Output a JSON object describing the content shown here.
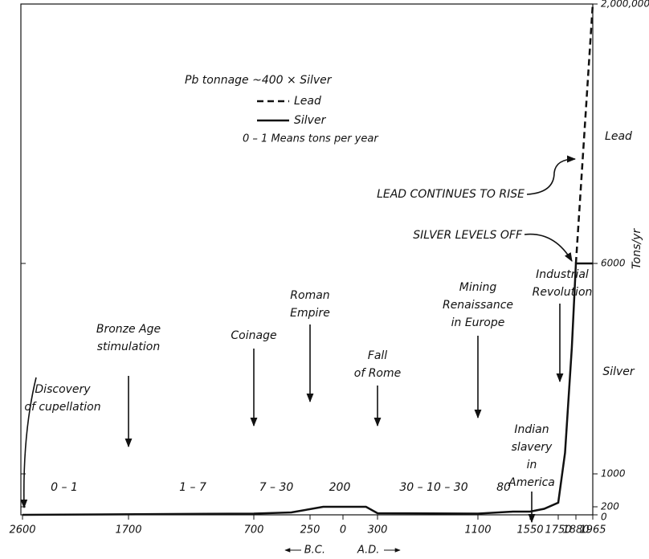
{
  "chart_data": {
    "type": "line",
    "xlim": [
      -2600,
      1965
    ],
    "xticks": [
      {
        "value": -2600,
        "label": "2600"
      },
      {
        "value": -1700,
        "label": "1700"
      },
      {
        "value": -700,
        "label": "700"
      },
      {
        "value": -250,
        "label": "250"
      },
      0,
      300,
      1100,
      1550,
      1750,
      1880,
      1965
    ],
    "ylim": [
      0,
      2000000
    ],
    "yticks": [
      0,
      200,
      1000,
      6000,
      {
        "value": 2000000,
        "label": "2,000,000"
      }
    ],
    "y_label": "Tons/yr",
    "era_labels": {
      "bc": "B.C.",
      "ad": "A.D."
    },
    "side_labels": [
      "Lead",
      "Silver"
    ],
    "series": [
      {
        "name": "Lead",
        "color": "#111",
        "dash": true,
        "x": [
          1880,
          1965
        ],
        "values": [
          6000,
          2000000
        ]
      },
      {
        "name": "Silver",
        "color": "#111",
        "dash": false,
        "x": [
          -2600,
          -700,
          -400,
          -150,
          100,
          200,
          300,
          1100,
          1400,
          1550,
          1650,
          1750,
          1800,
          1850,
          1880,
          1965
        ],
        "values": [
          1,
          30,
          60,
          200,
          200,
          200,
          40,
          30,
          80,
          80,
          150,
          300,
          1500,
          4000,
          6000,
          6000
        ]
      }
    ],
    "legend_title": "Pb tonnage ~400 × Silver",
    "legend_note": "0 – 1 Means tons per year",
    "rates": [
      "0 – 1",
      "1 – 7",
      "7 – 30",
      "200",
      "30 – 10 – 30",
      "80"
    ],
    "annotations": [
      {
        "lines": [
          "Discovery",
          "of cupellation"
        ]
      },
      {
        "lines": [
          "Bronze Age",
          "stimulation"
        ]
      },
      {
        "lines": [
          "Coinage"
        ]
      },
      {
        "lines": [
          "Roman",
          "Empire"
        ]
      },
      {
        "lines": [
          "Fall",
          "of Rome"
        ]
      },
      {
        "lines": [
          "Mining",
          "Renaissance",
          "in Europe"
        ]
      },
      {
        "lines": [
          "Industrial",
          "Revolution"
        ]
      },
      {
        "lines": [
          "Indian",
          "slavery",
          "in",
          "America"
        ]
      },
      {
        "lines": [
          "LEAD CONTINUES TO RISE"
        ]
      },
      {
        "lines": [
          "SILVER LEVELS OFF"
        ]
      }
    ]
  }
}
